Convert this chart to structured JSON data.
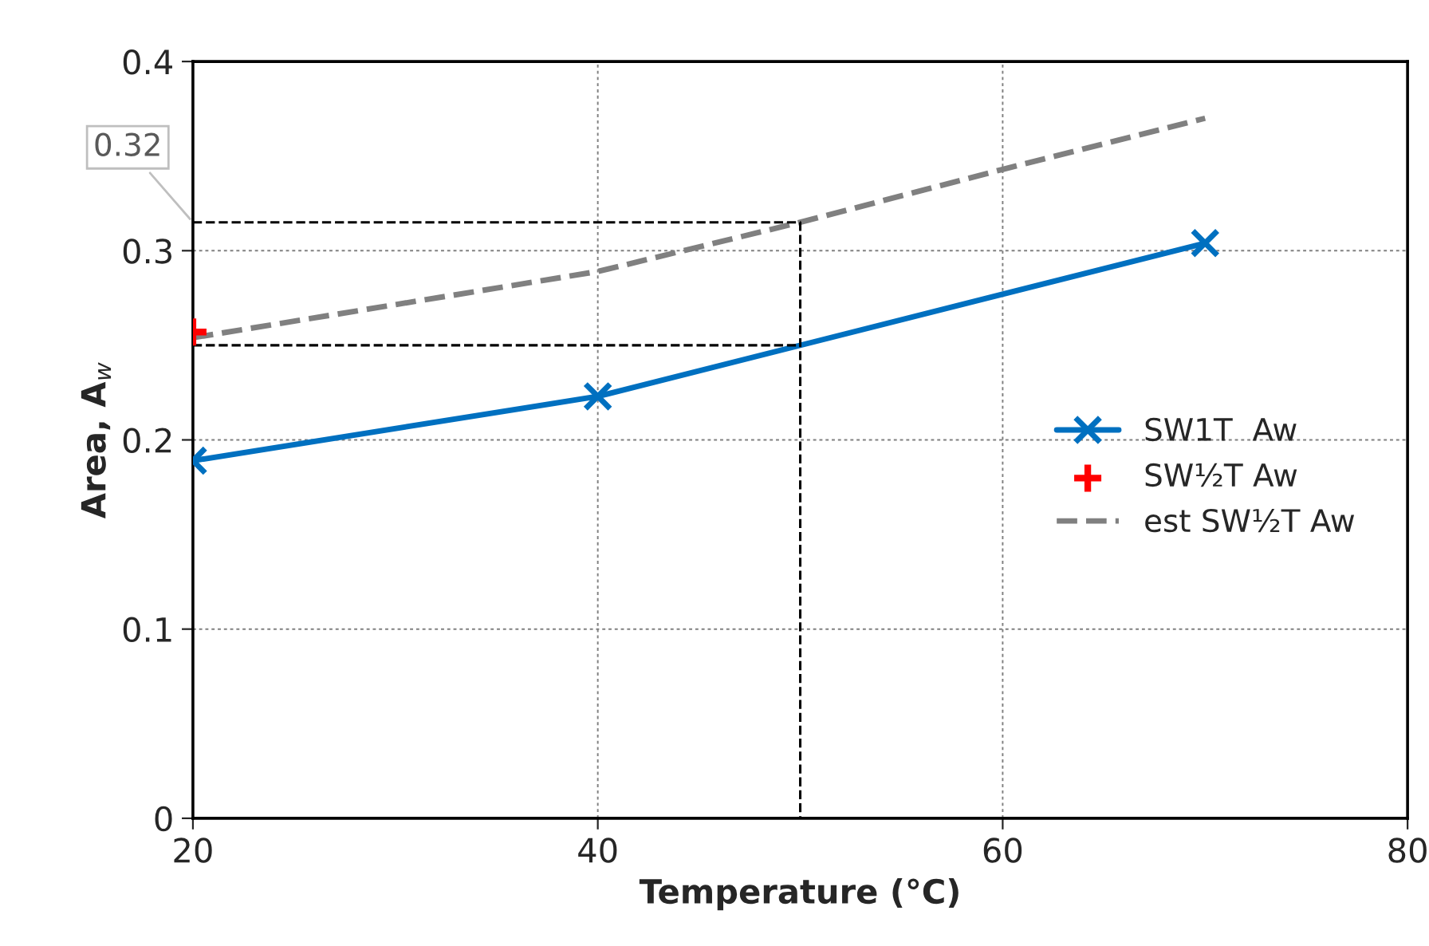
{
  "chart_data": {
    "type": "line",
    "xlabel": "Temperature (°C)",
    "ylabel": "Area, A$_{w}$",
    "xlim": [
      20,
      80
    ],
    "xticks": [
      20,
      40,
      60,
      80
    ],
    "ylim": [
      0,
      0.4
    ],
    "yticks": [
      0,
      0.1,
      0.2,
      0.3,
      0.4
    ],
    "grid": true,
    "legend": "right",
    "series": [
      {
        "name": "SW1T  Aw",
        "color": "#0070c0",
        "x": [
          20,
          40,
          70
        ],
        "values": [
          0.189,
          0.223,
          0.304
        ],
        "marker": "cross",
        "line_style": "solid"
      },
      {
        "name": "SW½T Aw",
        "type": "scatter",
        "color": "#ff0000",
        "x": [
          20
        ],
        "values": [
          0.257
        ],
        "marker": "plus"
      },
      {
        "name": "est SW½T Aw",
        "color": "#808080",
        "x": [
          20,
          40,
          50,
          60,
          70
        ],
        "values": [
          0.254,
          0.289,
          0.315,
          0.343,
          0.37
        ],
        "marker": "none",
        "line_style": "dashed"
      },
      {
        "color": "#000000",
        "x": [
          20,
          50,
          50
        ],
        "values": [
          0.315,
          0.315,
          0
        ],
        "marker": "none",
        "line_style": "dashed"
      },
      {
        "color": "#000000",
        "x": [
          20,
          50
        ],
        "values": [
          0.25,
          0.25
        ],
        "marker": "none",
        "line_style": "dashed"
      }
    ],
    "annotations": [
      {
        "text": "0.32",
        "x": 20,
        "y": 0.315
      }
    ]
  }
}
